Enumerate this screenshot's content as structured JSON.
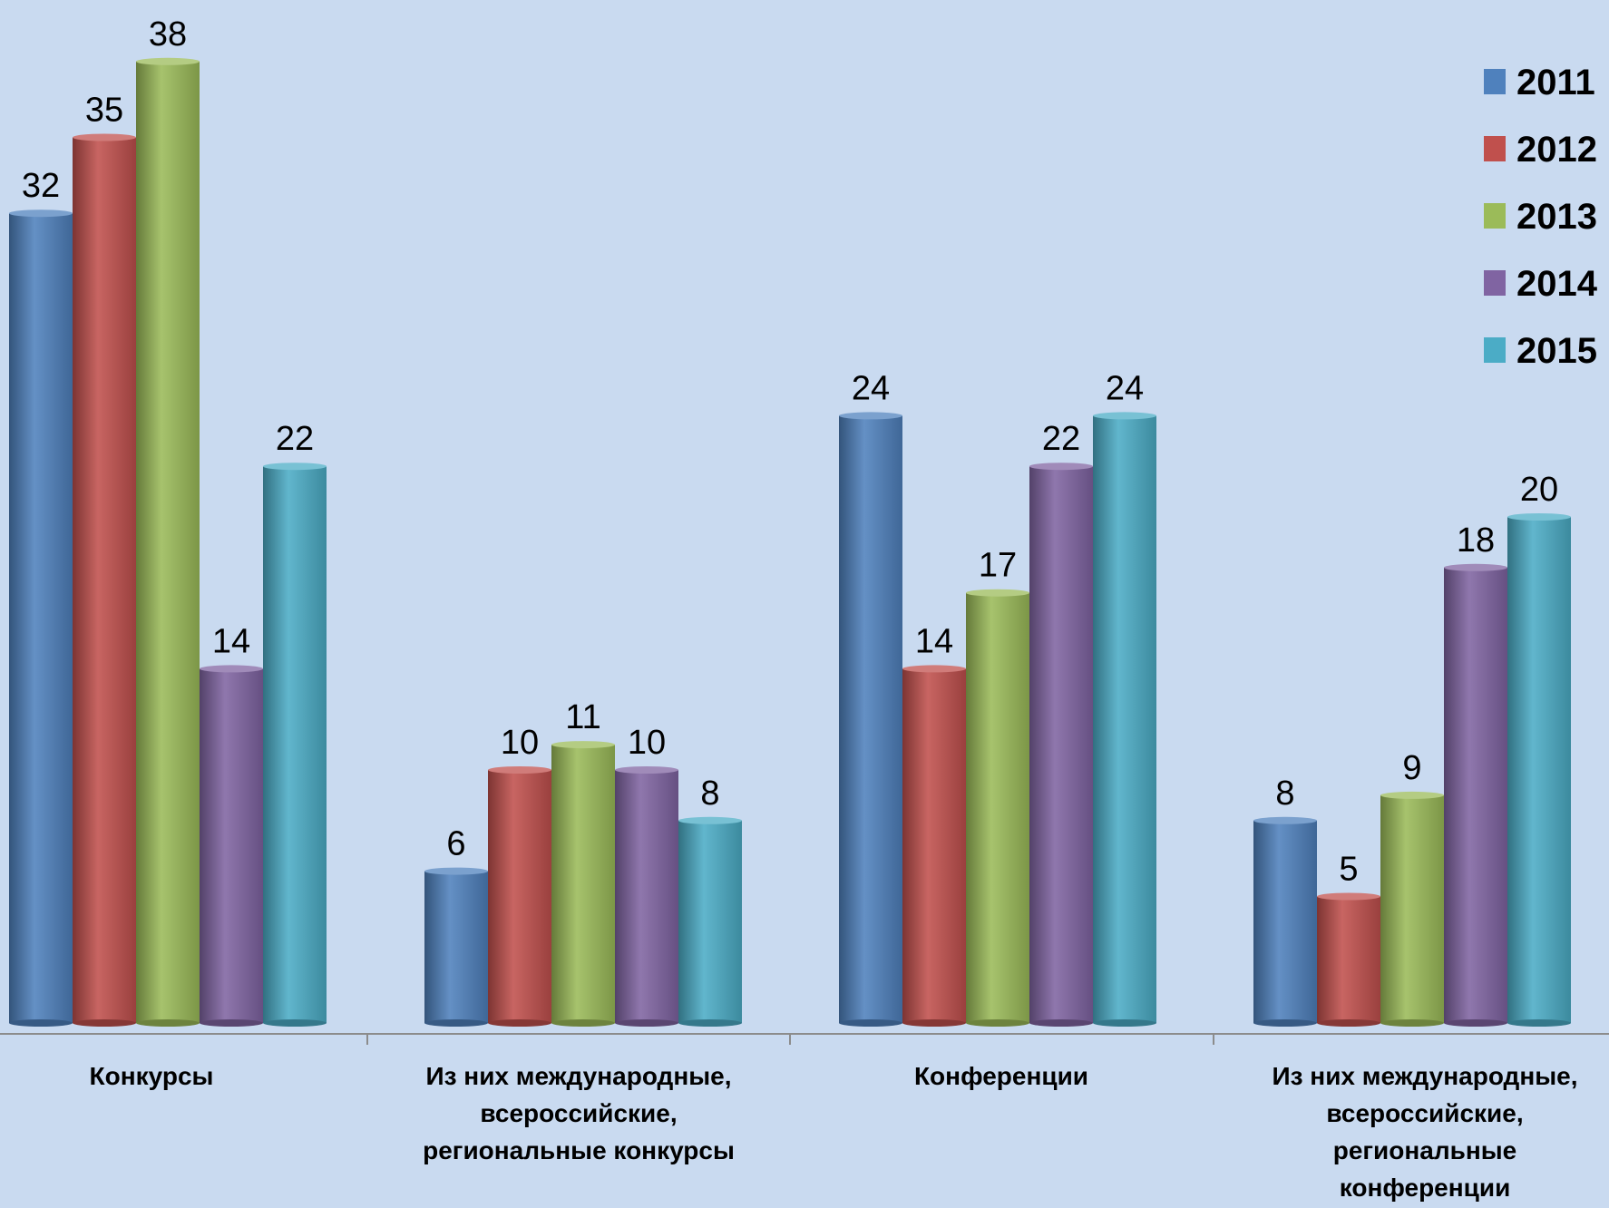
{
  "chart_data": {
    "type": "bar",
    "title": "",
    "xlabel": "",
    "ylabel": "",
    "ylim": [
      0,
      40
    ],
    "grid": false,
    "legend_position": "top-right",
    "categories": [
      [
        "Конкурсы"
      ],
      [
        "Из них международные,",
        "всероссийские,",
        "региональные конкурсы"
      ],
      [
        "Конференции"
      ],
      [
        "Из них международные,",
        "всероссийские,",
        "региональные",
        "конференции"
      ]
    ],
    "series": [
      {
        "name": "2011",
        "color": "#4f81bd",
        "values": [
          32,
          6,
          24,
          8
        ]
      },
      {
        "name": "2012",
        "color": "#c0504d",
        "values": [
          35,
          10,
          14,
          5
        ]
      },
      {
        "name": "2013",
        "color": "#9bbb59",
        "values": [
          38,
          11,
          17,
          9
        ]
      },
      {
        "name": "2014",
        "color": "#8064a2",
        "values": [
          14,
          10,
          22,
          18
        ]
      },
      {
        "name": "2015",
        "color": "#4bacc6",
        "values": [
          22,
          8,
          24,
          20
        ]
      }
    ]
  },
  "colors": {
    "background": "#c9daf0",
    "axis": "#8c8c8c",
    "text": "#000000"
  }
}
